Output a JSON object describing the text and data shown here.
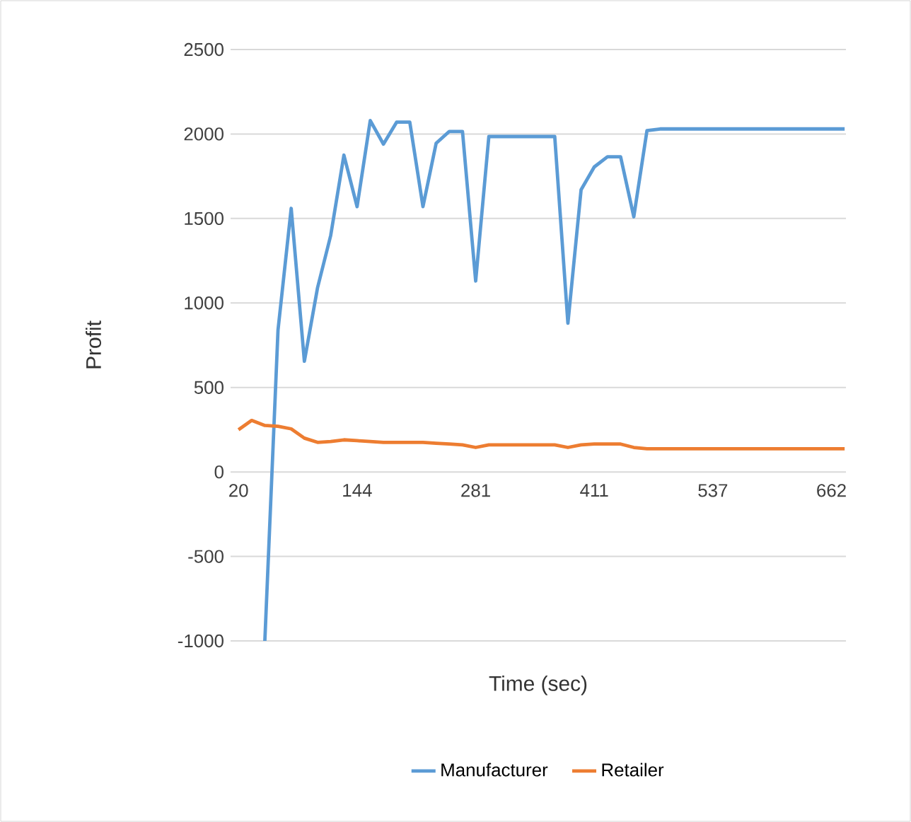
{
  "chart_data": {
    "type": "line",
    "xlabel": "Time (sec)",
    "ylabel": "Profit",
    "categories": [
      "20",
      null,
      null,
      null,
      null,
      null,
      null,
      null,
      null,
      "144",
      null,
      null,
      null,
      null,
      null,
      null,
      null,
      null,
      "281",
      null,
      null,
      null,
      null,
      null,
      null,
      null,
      null,
      "411",
      null,
      null,
      null,
      null,
      null,
      null,
      null,
      null,
      "537",
      null,
      null,
      null,
      null,
      null,
      null,
      null,
      null,
      "662",
      null
    ],
    "series": [
      {
        "name": "Manufacturer",
        "color": "#5b9bd5",
        "values": [
          null,
          null,
          -1000,
          840,
          1560,
          655,
          1090,
          1400,
          1875,
          1570,
          2080,
          1940,
          2070,
          2070,
          1570,
          1945,
          2015,
          2015,
          1130,
          1985,
          1985,
          1985,
          1985,
          1985,
          1985,
          880,
          1670,
          1805,
          1865,
          1865,
          1510,
          2020,
          2030,
          2030,
          2030,
          2030,
          2030,
          2030,
          2030,
          2030,
          2030,
          2030,
          2030,
          2030,
          2030,
          2030,
          2030
        ]
      },
      {
        "name": "Retailer",
        "color": "#ed7d31",
        "values": [
          250,
          305,
          275,
          270,
          255,
          200,
          175,
          180,
          190,
          185,
          180,
          175,
          175,
          175,
          175,
          170,
          165,
          160,
          145,
          160,
          160,
          160,
          160,
          160,
          160,
          145,
          160,
          165,
          165,
          165,
          145,
          137,
          137,
          137,
          137,
          137,
          137,
          137,
          137,
          137,
          137,
          137,
          137,
          137,
          137,
          137,
          137
        ]
      }
    ],
    "ylim": [
      -1000,
      2500
    ],
    "yticks": [
      -1000,
      -500,
      0,
      500,
      1000,
      1500,
      2000,
      2500
    ],
    "grid": "y",
    "legend": "bottom",
    "marker": "none",
    "line_style": "solid"
  }
}
